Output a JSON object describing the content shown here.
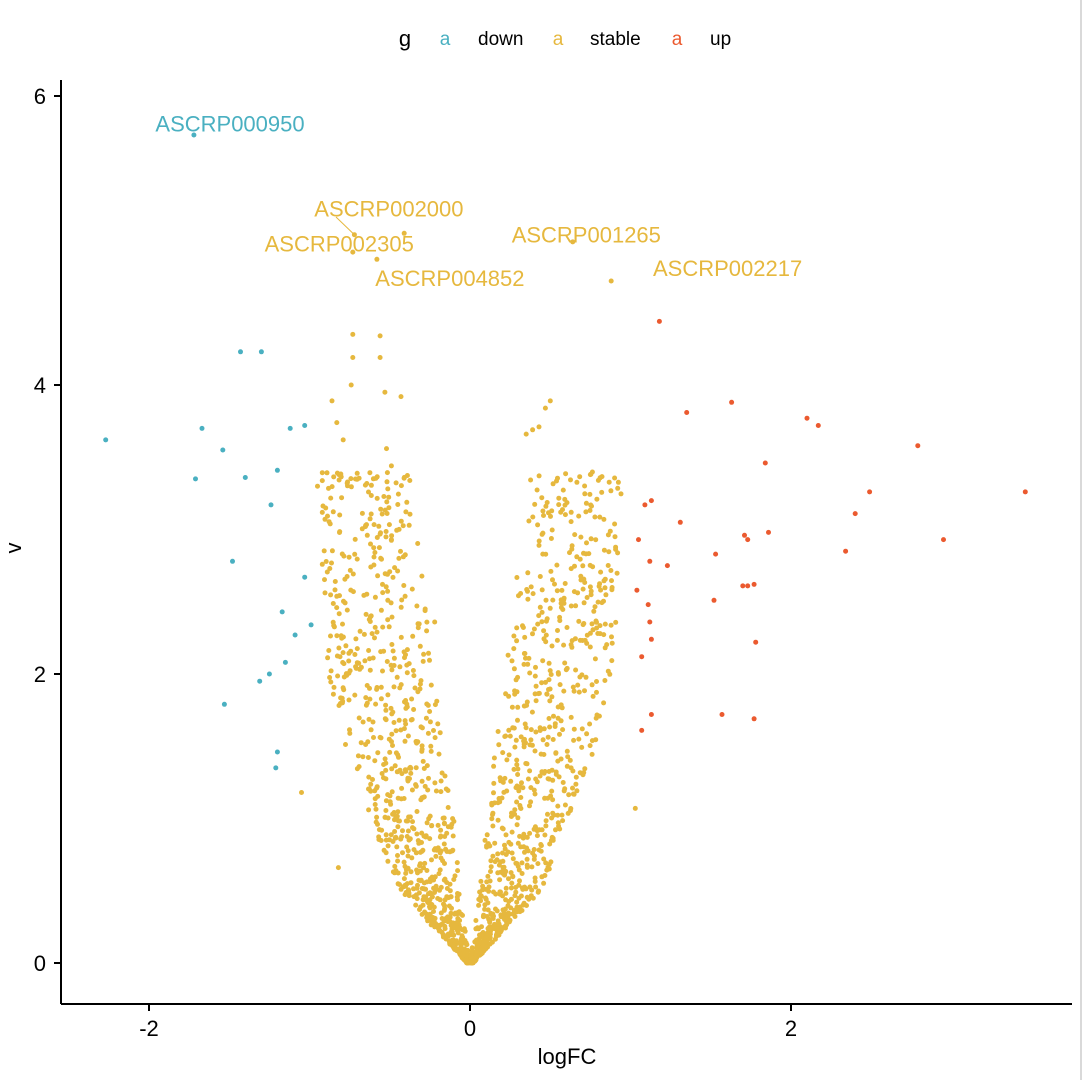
{
  "colors": {
    "down": "#4AB0C1",
    "stable": "#E6B83E",
    "up": "#EB5A2F"
  },
  "chart_data": {
    "type": "scatter",
    "title": "",
    "xlabel": "logFC",
    "ylabel": "v",
    "xlim": [
      -2.5,
      3.7
    ],
    "ylim": [
      -0.28,
      6.1
    ],
    "x_ticks": [
      {
        "value": -2,
        "label": "-2"
      },
      {
        "value": 0,
        "label": "0"
      },
      {
        "value": 2,
        "label": "2"
      }
    ],
    "y_ticks": [
      {
        "value": 0,
        "label": "0"
      },
      {
        "value": 2,
        "label": "2"
      },
      {
        "value": 4,
        "label": "4"
      },
      {
        "value": 6,
        "label": "6"
      }
    ],
    "grid": false,
    "legend": {
      "position": "top",
      "title": "g",
      "key_glyph": "a",
      "entries": [
        {
          "group": "down",
          "label": "down"
        },
        {
          "group": "stable",
          "label": "stable"
        },
        {
          "group": "up",
          "label": "up"
        }
      ]
    },
    "series": [
      {
        "group": "down",
        "points": [
          [
            -1.72,
            5.73
          ],
          [
            -2.27,
            3.62
          ],
          [
            -1.67,
            3.7
          ],
          [
            -1.71,
            3.35
          ],
          [
            -1.43,
            4.23
          ],
          [
            -1.3,
            4.23
          ],
          [
            -1.54,
            3.55
          ],
          [
            -1.4,
            3.36
          ],
          [
            -1.12,
            3.7
          ],
          [
            -1.03,
            3.72
          ],
          [
            -1.2,
            3.41
          ],
          [
            -1.24,
            3.17
          ],
          [
            -1.48,
            2.78
          ],
          [
            -1.03,
            2.67
          ],
          [
            -1.17,
            2.43
          ],
          [
            -0.99,
            2.34
          ],
          [
            -1.09,
            2.27
          ],
          [
            -1.15,
            2.08
          ],
          [
            -1.25,
            2.0
          ],
          [
            -1.31,
            1.95
          ],
          [
            -1.53,
            1.79
          ],
          [
            -1.2,
            1.46
          ],
          [
            -1.21,
            1.35
          ]
        ]
      },
      {
        "group": "stable",
        "points": [
          [
            -0.72,
            5.04
          ],
          [
            -0.73,
            4.92
          ],
          [
            -0.58,
            4.87
          ],
          [
            -0.41,
            5.05
          ],
          [
            0.64,
            4.99
          ],
          [
            0.88,
            4.72
          ],
          [
            -0.73,
            4.35
          ],
          [
            -0.73,
            4.19
          ],
          [
            -0.74,
            4.0
          ],
          [
            -0.56,
            4.34
          ],
          [
            -0.56,
            4.19
          ],
          [
            -0.53,
            3.95
          ],
          [
            -0.43,
            3.92
          ],
          [
            -0.86,
            3.89
          ],
          [
            -0.83,
            3.74
          ],
          [
            -0.79,
            3.62
          ],
          [
            0.5,
            3.89
          ],
          [
            0.47,
            3.84
          ],
          [
            0.43,
            3.71
          ],
          [
            0.39,
            3.69
          ],
          [
            0.35,
            3.66
          ],
          [
            -0.52,
            3.56
          ],
          [
            -0.49,
            3.44
          ],
          [
            0.75,
            3.38
          ],
          [
            -0.95,
            3.3
          ],
          [
            -0.8,
            3.22
          ],
          [
            0.62,
            2.84
          ],
          [
            0.43,
            2.89
          ],
          [
            0.36,
            2.7
          ],
          [
            -0.22,
            2.36
          ],
          [
            1.03,
            1.07
          ],
          [
            -1.05,
            1.18
          ],
          [
            -0.82,
            0.66
          ],
          [
            0.63,
            1.35
          ],
          [
            0.55,
            0.97
          ]
        ],
        "envelope": {
          "count": 1700,
          "x_range": [
            -0.92,
            0.98
          ],
          "y_range": [
            0,
            3.4
          ],
          "min_abs_x_at": [
            [
              0,
              0
            ],
            [
              0.5,
              0.06
            ],
            [
              1,
              0.1
            ],
            [
              2,
              0.22
            ],
            [
              3,
              0.32
            ],
            [
              3.4,
              0.38
            ]
          ],
          "max_abs_x_at": [
            [
              0,
              0.02
            ],
            [
              0.5,
              0.44
            ],
            [
              1,
              0.62
            ],
            [
              1.5,
              0.78
            ],
            [
              2,
              0.88
            ],
            [
              2.5,
              0.92
            ],
            [
              3.4,
              0.95
            ]
          ]
        }
      },
      {
        "group": "up",
        "points": [
          [
            1.18,
            4.44
          ],
          [
            1.63,
            3.88
          ],
          [
            1.35,
            3.81
          ],
          [
            2.1,
            3.77
          ],
          [
            2.17,
            3.72
          ],
          [
            2.79,
            3.58
          ],
          [
            1.84,
            3.46
          ],
          [
            3.46,
            3.26
          ],
          [
            2.49,
            3.26
          ],
          [
            1.13,
            3.2
          ],
          [
            1.09,
            3.17
          ],
          [
            2.4,
            3.11
          ],
          [
            1.31,
            3.05
          ],
          [
            1.86,
            2.98
          ],
          [
            1.71,
            2.96
          ],
          [
            1.73,
            2.93
          ],
          [
            1.05,
            2.93
          ],
          [
            2.95,
            2.93
          ],
          [
            2.34,
            2.85
          ],
          [
            1.53,
            2.83
          ],
          [
            1.12,
            2.78
          ],
          [
            1.23,
            2.75
          ],
          [
            1.77,
            2.62
          ],
          [
            1.73,
            2.61
          ],
          [
            1.7,
            2.61
          ],
          [
            1.04,
            2.58
          ],
          [
            1.52,
            2.51
          ],
          [
            1.11,
            2.48
          ],
          [
            1.12,
            2.36
          ],
          [
            1.13,
            2.24
          ],
          [
            1.78,
            2.22
          ],
          [
            1.07,
            2.12
          ],
          [
            1.57,
            1.72
          ],
          [
            1.77,
            1.69
          ],
          [
            1.13,
            1.72
          ],
          [
            1.07,
            1.61
          ]
        ]
      }
    ],
    "annotations": [
      {
        "text": "ASCRP000950",
        "group": "down",
        "x": -1.72,
        "y": 5.73,
        "label_x": -1.96,
        "label_y": 5.81
      },
      {
        "text": "ASCRP002000",
        "group": "stable",
        "x": -0.72,
        "y": 5.04,
        "label_x": -0.97,
        "label_y": 5.22
      },
      {
        "text": "ASCRP002305",
        "group": "stable",
        "x": -0.73,
        "y": 4.92,
        "label_x": -1.28,
        "label_y": 4.98
      },
      {
        "text": "ASCRP001265",
        "group": "stable",
        "x": 0.64,
        "y": 4.99,
        "label_x": 0.26,
        "label_y": 5.04
      },
      {
        "text": "ASCRP004852",
        "group": "stable",
        "x": -0.58,
        "y": 4.87,
        "label_x": -0.59,
        "label_y": 4.74
      },
      {
        "text": "ASCRP002217",
        "group": "stable",
        "x": 0.88,
        "y": 4.72,
        "label_x": 1.14,
        "label_y": 4.81
      }
    ]
  }
}
